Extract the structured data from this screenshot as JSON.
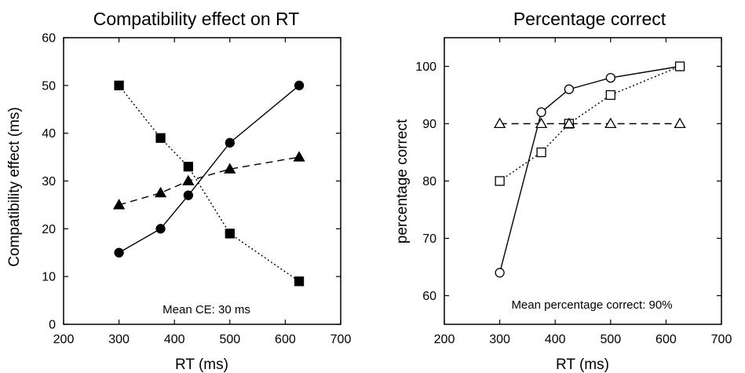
{
  "chart_data": [
    {
      "type": "line",
      "title": "Compatibility effect on RT",
      "xlabel": "RT (ms)",
      "ylabel": "Compatibility effect (ms)",
      "xlim": [
        200,
        700
      ],
      "ylim": [
        0,
        60
      ],
      "xticks": [
        200,
        300,
        400,
        500,
        600,
        700
      ],
      "yticks": [
        0,
        10,
        20,
        30,
        40,
        50,
        60
      ],
      "annotation": "Mean CE: 30 ms",
      "grid": false,
      "series": [
        {
          "marker": "circle-filled",
          "line": "solid",
          "x": [
            300,
            375,
            425,
            500,
            625
          ],
          "y": [
            15,
            20,
            27,
            38,
            50
          ]
        },
        {
          "marker": "square-filled",
          "line": "dotted",
          "x": [
            300,
            375,
            425,
            500,
            625
          ],
          "y": [
            50,
            39,
            33,
            19,
            9
          ]
        },
        {
          "marker": "triangle-filled",
          "line": "dashed",
          "x": [
            300,
            375,
            425,
            500,
            625
          ],
          "y": [
            25,
            27.5,
            30,
            32.5,
            35
          ]
        }
      ]
    },
    {
      "type": "line",
      "title": "Percentage correct",
      "xlabel": "RT (ms)",
      "ylabel": "percentage correct",
      "xlim": [
        200,
        700
      ],
      "ylim": [
        55,
        105
      ],
      "xticks": [
        200,
        300,
        400,
        500,
        600,
        700
      ],
      "yticks": [
        60,
        70,
        80,
        90,
        100
      ],
      "annotation": "Mean percentage correct: 90%",
      "grid": false,
      "series": [
        {
          "marker": "circle-open",
          "line": "solid",
          "x": [
            300,
            375,
            425,
            500,
            625
          ],
          "y": [
            64,
            92,
            96,
            98,
            100
          ]
        },
        {
          "marker": "square-open",
          "line": "dotted",
          "x": [
            300,
            375,
            425,
            500,
            625
          ],
          "y": [
            80,
            85,
            90,
            95,
            100
          ]
        },
        {
          "marker": "triangle-open",
          "line": "dashed",
          "x": [
            300,
            375,
            425,
            500,
            625
          ],
          "y": [
            90,
            90,
            90,
            90,
            90
          ]
        }
      ]
    }
  ]
}
